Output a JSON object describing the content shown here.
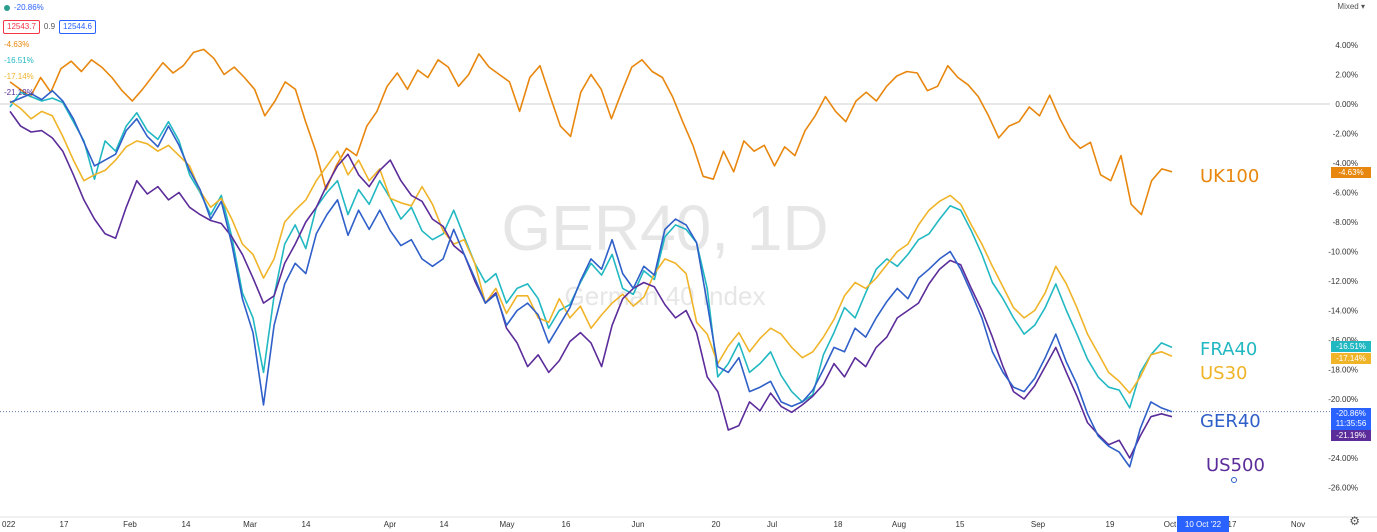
{
  "chart_data": {
    "type": "line",
    "title": "GER40, 1D",
    "subtitle": "German 40 Index",
    "y_unit": "%",
    "ylim": [
      -27,
      6
    ],
    "yticks": [
      "4.00%",
      "2.00%",
      "0.00%",
      "-2.00%",
      "-4.00%",
      "-6.00%",
      "-8.00%",
      "-10.00%",
      "-12.00%",
      "-14.00%",
      "-16.00%",
      "-18.00%",
      "-20.00%",
      "-24.00%",
      "-26.00%"
    ],
    "xticks": [
      "022",
      "17",
      "Feb",
      "14",
      "Mar",
      "14",
      "Apr",
      "14",
      "May",
      "16",
      "Jun",
      "20",
      "Jul",
      "18",
      "Aug",
      "15",
      "Sep",
      "19",
      "Oct",
      "17",
      "Nov"
    ],
    "x_current_label": "10 Oct '22",
    "price_scale_mode": "Mixed",
    "grid": false,
    "series": [
      {
        "name": "UK100",
        "color": "#e8870e",
        "last": "-4.63%",
        "values": [
          1.5,
          1.0,
          0.5,
          1.8,
          0.8,
          2.4,
          2.9,
          2.2,
          3.0,
          2.5,
          1.8,
          0.9,
          0.2,
          1.0,
          1.9,
          2.8,
          2.1,
          2.6,
          3.5,
          3.7,
          3.1,
          2.0,
          2.5,
          1.8,
          1.0,
          -0.8,
          0.2,
          1.5,
          1.0,
          -1.2,
          -3.2,
          -5.8,
          -4.2,
          -3.0,
          -3.5,
          -1.5,
          -0.5,
          1.2,
          2.1,
          1.0,
          2.3,
          1.8,
          3.0,
          2.5,
          1.2,
          2.0,
          3.4,
          2.5,
          2.0,
          1.5,
          -0.5,
          1.8,
          2.6,
          0.5,
          -1.5,
          -2.2,
          0.8,
          2.0,
          1.0,
          -1.0,
          0.8,
          2.5,
          3.0,
          2.2,
          1.8,
          0.5,
          -1.2,
          -2.8,
          -4.9,
          -5.1,
          -3.2,
          -4.6,
          -2.5,
          -3.2,
          -2.8,
          -4.2,
          -2.9,
          -3.5,
          -1.8,
          -0.8,
          0.5,
          -0.5,
          -1.2,
          0.2,
          0.8,
          0.2,
          1.2,
          1.9,
          2.2,
          2.1,
          0.9,
          1.2,
          2.6,
          1.8,
          1.3,
          0.5,
          -0.8,
          -2.3,
          -1.5,
          -1.2,
          -0.2,
          -0.8,
          0.6,
          -1.0,
          -2.3,
          -3.0,
          -2.6,
          -4.8,
          -5.2,
          -3.5,
          -6.8,
          -7.5,
          -5.2,
          -4.4,
          -4.6
        ]
      },
      {
        "name": "FRA40",
        "color": "#22b8c2",
        "last": "-16.51%",
        "values": [
          -0.2,
          0.8,
          0.5,
          0.2,
          0.4,
          0.1,
          -1.2,
          -2.5,
          -5.1,
          -2.5,
          -3.2,
          -1.5,
          -0.6,
          -1.8,
          -2.4,
          -1.2,
          -2.5,
          -4.8,
          -6.0,
          -7.5,
          -6.2,
          -9.0,
          -12.8,
          -14.5,
          -18.2,
          -13.0,
          -9.5,
          -8.2,
          -9.8,
          -7.0,
          -6.0,
          -5.2,
          -7.5,
          -5.8,
          -6.8,
          -5.2,
          -6.4,
          -7.8,
          -7.0,
          -8.6,
          -9.2,
          -8.8,
          -7.2,
          -9.0,
          -10.8,
          -12.1,
          -11.5,
          -13.5,
          -12.5,
          -12.2,
          -13.2,
          -15.2,
          -14.0,
          -13.6,
          -12.1,
          -10.8,
          -11.6,
          -10.2,
          -12.5,
          -12.9,
          -11.3,
          -11.9,
          -9.0,
          -8.2,
          -8.5,
          -9.4,
          -12.5,
          -18.5,
          -17.6,
          -16.2,
          -18.2,
          -17.6,
          -16.8,
          -18.4,
          -19.5,
          -20.2,
          -19.7,
          -17.0,
          -15.5,
          -13.8,
          -14.5,
          -12.8,
          -11.2,
          -10.5,
          -11.0,
          -10.2,
          -9.2,
          -8.8,
          -7.8,
          -6.9,
          -7.2,
          -8.6,
          -10.2,
          -12.1,
          -13.2,
          -14.5,
          -15.6,
          -15.0,
          -13.8,
          -12.2,
          -14.0,
          -15.6,
          -17.3,
          -18.5,
          -19.2,
          -19.4,
          -20.6,
          -18.2,
          -17.0,
          -16.2,
          -16.5
        ]
      },
      {
        "name": "US30",
        "color": "#f0b429",
        "last": "-17.14%",
        "values": [
          0.2,
          -0.3,
          -1.0,
          -0.5,
          -0.8,
          -2.2,
          -3.8,
          -5.2,
          -4.8,
          -4.5,
          -3.8,
          -2.9,
          -2.5,
          -2.7,
          -3.2,
          -2.8,
          -3.5,
          -4.2,
          -5.9,
          -7.0,
          -6.4,
          -7.8,
          -9.5,
          -10.2,
          -11.8,
          -10.5,
          -8.0,
          -7.2,
          -6.5,
          -5.2,
          -4.2,
          -3.2,
          -4.8,
          -3.8,
          -5.2,
          -4.4,
          -6.4,
          -6.7,
          -6.9,
          -5.6,
          -6.8,
          -8.6,
          -9.5,
          -9.2,
          -10.8,
          -13.5,
          -12.5,
          -14.2,
          -13.0,
          -13.0,
          -14.5,
          -14.8,
          -13.2,
          -14.5,
          -13.7,
          -15.2,
          -14.3,
          -13.5,
          -12.9,
          -13.7,
          -13.1,
          -11.5,
          -10.5,
          -10.8,
          -11.5,
          -14.8,
          -15.6,
          -17.6,
          -16.4,
          -15.5,
          -16.8,
          -15.9,
          -15.2,
          -15.6,
          -16.5,
          -17.2,
          -16.8,
          -15.8,
          -14.6,
          -13.0,
          -12.1,
          -12.5,
          -11.8,
          -10.9,
          -10.0,
          -9.5,
          -8.2,
          -7.2,
          -6.6,
          -6.2,
          -6.8,
          -8.2,
          -9.5,
          -11.0,
          -12.4,
          -13.8,
          -14.5,
          -14.0,
          -12.8,
          -11.0,
          -12.2,
          -13.8,
          -15.6,
          -16.9,
          -18.2,
          -18.8,
          -19.6,
          -18.5,
          -17.0,
          -16.8,
          -17.1
        ]
      },
      {
        "name": "US500",
        "color": "#5b2c9a",
        "last": "-21.19%",
        "values": [
          -0.5,
          -1.5,
          -1.9,
          -1.8,
          -2.3,
          -3.2,
          -4.8,
          -6.5,
          -7.8,
          -8.8,
          -9.1,
          -7.0,
          -5.2,
          -6.1,
          -5.6,
          -6.5,
          -6.0,
          -7.0,
          -7.5,
          -7.9,
          -8.1,
          -9.0,
          -10.2,
          -11.8,
          -13.5,
          -13.0,
          -10.8,
          -9.5,
          -8.0,
          -7.0,
          -5.5,
          -4.2,
          -3.4,
          -4.8,
          -5.6,
          -4.5,
          -3.8,
          -5.2,
          -6.2,
          -6.6,
          -7.8,
          -8.3,
          -9.6,
          -10.2,
          -12.0,
          -13.5,
          -12.8,
          -15.2,
          -16.2,
          -17.8,
          -17.0,
          -18.2,
          -17.4,
          -16.1,
          -15.5,
          -16.2,
          -17.8,
          -15.0,
          -13.2,
          -12.5,
          -12.1,
          -12.4,
          -13.6,
          -14.5,
          -14.0,
          -15.5,
          -18.5,
          -19.5,
          -22.1,
          -21.8,
          -20.2,
          -20.8,
          -19.6,
          -20.5,
          -20.9,
          -20.4,
          -19.8,
          -19.0,
          -17.6,
          -18.5,
          -17.2,
          -17.8,
          -16.5,
          -15.8,
          -14.5,
          -14.0,
          -13.5,
          -12.2,
          -11.2,
          -10.6,
          -10.9,
          -12.5,
          -14.0,
          -15.8,
          -17.8,
          -19.5,
          -20.0,
          -19.1,
          -17.8,
          -16.5,
          -18.2,
          -19.8,
          -21.6,
          -22.4,
          -23.1,
          -22.8,
          -24.0,
          -22.5,
          -21.2,
          -21.0,
          -21.2
        ]
      },
      {
        "name": "GER40",
        "color": "#2f5fc8",
        "last": "-20.86%",
        "values": [
          0.1,
          0.4,
          0.7,
          0.3,
          0.9,
          0.2,
          -1.0,
          -2.6,
          -4.2,
          -3.8,
          -3.4,
          -1.8,
          -1.0,
          -2.2,
          -2.9,
          -1.5,
          -2.8,
          -4.5,
          -5.8,
          -7.8,
          -6.6,
          -9.5,
          -13.2,
          -15.5,
          -20.4,
          -15.0,
          -12.2,
          -10.8,
          -11.5,
          -8.8,
          -7.5,
          -6.5,
          -8.9,
          -7.2,
          -8.5,
          -7.2,
          -8.6,
          -9.6,
          -9.2,
          -10.5,
          -11.0,
          -10.5,
          -8.5,
          -10.2,
          -11.8,
          -13.5,
          -12.9,
          -15.0,
          -14.0,
          -13.5,
          -14.3,
          -16.2,
          -15.0,
          -13.8,
          -12.0,
          -10.5,
          -11.2,
          -9.2,
          -11.5,
          -12.5,
          -11.0,
          -11.6,
          -8.5,
          -7.8,
          -8.2,
          -9.4,
          -13.5,
          -17.8,
          -18.2,
          -17.2,
          -19.5,
          -19.2,
          -18.8,
          -20.2,
          -20.5,
          -20.2,
          -19.4,
          -18.0,
          -16.5,
          -16.8,
          -15.2,
          -15.8,
          -14.5,
          -13.4,
          -12.5,
          -13.2,
          -11.8,
          -11.2,
          -10.5,
          -10.0,
          -11.2,
          -12.8,
          -14.5,
          -16.8,
          -18.2,
          -19.2,
          -19.5,
          -18.6,
          -17.2,
          -15.6,
          -17.5,
          -19.0,
          -21.0,
          -22.5,
          -23.2,
          -23.6,
          -24.6,
          -22.0,
          -20.2,
          -20.6,
          -20.86
        ]
      }
    ],
    "current_price_time": "11:35:56",
    "legend": {
      "top_value": "-20.86%",
      "bid": "12543.7",
      "spread": "0.9",
      "ask": "12544.6",
      "values": [
        "-4.63%",
        "-16.51%",
        "-17.14%",
        "-21.19%"
      ]
    }
  }
}
